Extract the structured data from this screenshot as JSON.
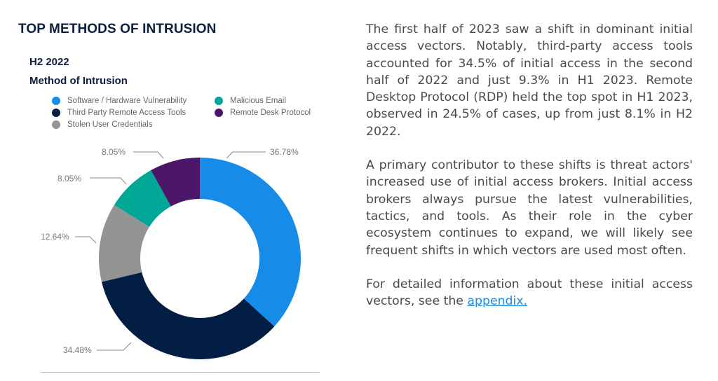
{
  "title": "TOP METHODS OF INTRUSION",
  "period": "H2 2022",
  "chart_subtitle": "Method of Intrusion",
  "chart_data": {
    "type": "pie",
    "variant": "donut",
    "start": "top",
    "direction": "clockwise",
    "legend_position": "top",
    "series": [
      {
        "name": "Software / Hardware Vulnerability",
        "value": 36.78,
        "label": "36.78%",
        "color": "#168ce8"
      },
      {
        "name": "Third Party Remote Access Tools",
        "value": 34.48,
        "label": "34.48%",
        "color": "#031e45"
      },
      {
        "name": "Stolen User Credentials",
        "value": 12.64,
        "label": "12.64%",
        "color": "#939393"
      },
      {
        "name": "Malicious Email",
        "value": 8.05,
        "label": "8.05%",
        "color": "#00a696"
      },
      {
        "name": "Remote Desk Protocol",
        "value": 8.05,
        "label": "8.05%",
        "color": "#4c1768"
      }
    ]
  },
  "body": {
    "p1": "The first half of 2023 saw a shift in dominant initial access vectors. Notably, third-party access tools accounted for 34.5% of initial access in the second half of 2022 and just 9.3% in H1 2023. Remote Desktop Protocol (RDP) held the top spot in H1 2023, observed in 24.5% of cases, up from just 8.1% in H2 2022.",
    "p2": "A primary contributor to these shifts is threat actors' increased use of initial access brokers. Initial access brokers always pursue the latest vulnerabilities, tactics, and tools. As their role in the cyber ecosystem continues to expand, we will likely see frequent shifts in which vectors are used most often.",
    "p3_prefix": "For detailed information about these initial access vectors, see the ",
    "p3_link": "appendix."
  },
  "colors": {
    "link": "#1a8ae6",
    "heading": "#0b1f3f",
    "rule": "#7fc4f5"
  }
}
